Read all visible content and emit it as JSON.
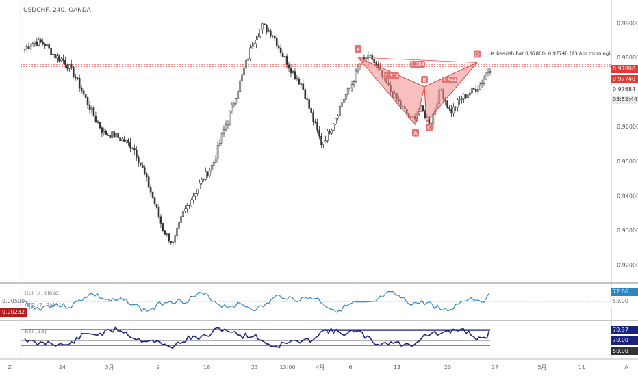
{
  "header": {
    "symbol": "USDCHF, 240, OANDA"
  },
  "annotation": "H4 bearish bat 0.97800- 0.97740 (23 Apr morning)",
  "pattern_points": {
    "X": "X",
    "A": "A",
    "B": "B",
    "C": "C",
    "D": "D"
  },
  "ratios": {
    "xb": "0.514",
    "xd": "0.884",
    "bd": "1.944"
  },
  "price_tags": {
    "upper": "0.97800",
    "lower": "0.97740",
    "last": "0.97684",
    "timer": "03:52:44"
  },
  "rsi": {
    "label": "RSI (7, close)",
    "value": "72.66",
    "level": "50.00"
  },
  "atr": {
    "label": "ATR (7, RMA)",
    "value": "0.00232",
    "level": "0.00500"
  },
  "rsi2": {
    "label": "RSI (13)",
    "value": "70.37",
    "level_high": "70.00",
    "level_mid": "50.00"
  },
  "footer": {
    "left_icon": "Z",
    "right_icon": "A"
  },
  "colors": {
    "up": "#333333",
    "down": "#333333",
    "resistance": "#e53935",
    "pattern": "#f28b8b",
    "rsi": "#2e86c1",
    "rsi2": "#1a237e"
  },
  "chart_data": [
    {
      "type": "candlestick",
      "title": "USDCHF, 240, OANDA",
      "x_ticks": [
        "24",
        "3月",
        "9",
        "16",
        "23",
        "13:00",
        "4月",
        "6",
        "13",
        "20",
        "27",
        "5月",
        "11",
        "A"
      ],
      "y_ticks": [
        0.92,
        0.93,
        0.94,
        0.95,
        0.96,
        0.97,
        0.98,
        0.99
      ],
      "ylim": [
        0.915,
        0.995
      ],
      "close_path": [
        0.9825,
        0.9845,
        0.984,
        0.9805,
        0.979,
        0.975,
        0.969,
        0.963,
        0.958,
        0.9575,
        0.956,
        0.954,
        0.947,
        0.939,
        0.93,
        0.926,
        0.935,
        0.94,
        0.945,
        0.949,
        0.958,
        0.966,
        0.975,
        0.984,
        0.989,
        0.987,
        0.981,
        0.976,
        0.972,
        0.963,
        0.955,
        0.96,
        0.967,
        0.972,
        0.979,
        0.98,
        0.975,
        0.97,
        0.966,
        0.962,
        0.965,
        0.961,
        0.971,
        0.964,
        0.968,
        0.97,
        0.972,
        0.977
      ],
      "resistance_levels": [
        0.978,
        0.9774
      ],
      "harmonic_xabcd": [
        0.98,
        0.9605,
        0.9715,
        0.9613,
        0.9785
      ]
    },
    {
      "type": "line",
      "series": [
        {
          "name": "RSI (7, close)",
          "last": 72.66
        }
      ],
      "levels": [
        50
      ]
    },
    {
      "type": "line",
      "series": [
        {
          "name": "RSI (13)",
          "last": 70.37
        }
      ],
      "levels": [
        70,
        50
      ]
    }
  ]
}
